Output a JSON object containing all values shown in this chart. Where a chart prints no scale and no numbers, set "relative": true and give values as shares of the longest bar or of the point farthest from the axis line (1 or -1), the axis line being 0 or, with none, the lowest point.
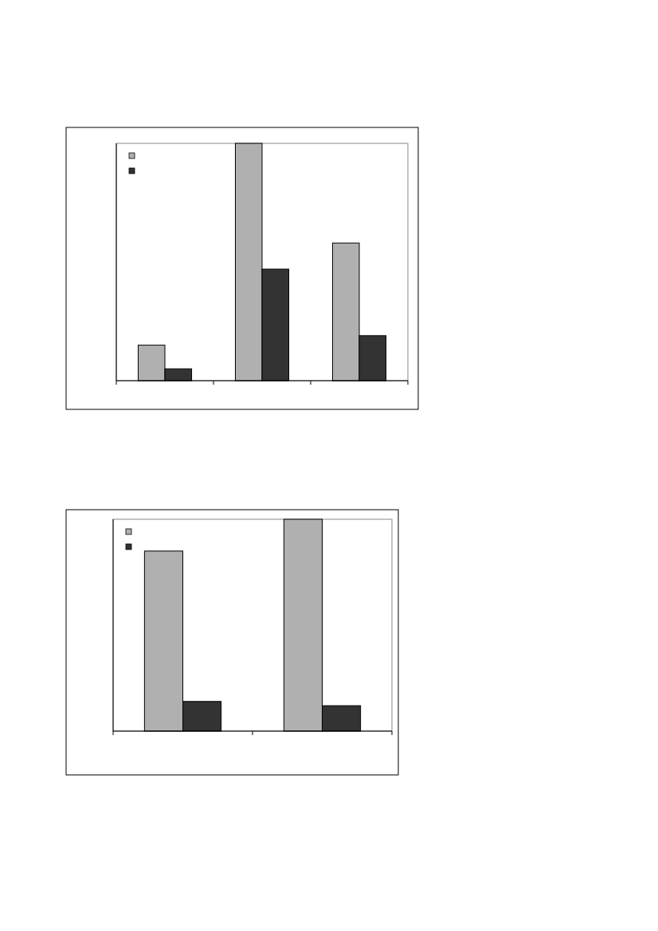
{
  "chart_data": [
    {
      "type": "bar",
      "relative": true,
      "categories": [
        null,
        null,
        null
      ],
      "series": [
        {
          "color": "#b0b0b0",
          "values": [
            0.15,
            1,
            0.58
          ]
        },
        {
          "color": "#333333",
          "values": [
            0.05,
            0.47,
            0.19
          ]
        }
      ]
    },
    {
      "type": "bar",
      "relative": true,
      "categories": [
        null,
        null
      ],
      "series": [
        {
          "color": "#b0b0b0",
          "values": [
            0.85,
            1
          ]
        },
        {
          "color": "#333333",
          "values": [
            0.14,
            0.12
          ]
        }
      ]
    }
  ]
}
